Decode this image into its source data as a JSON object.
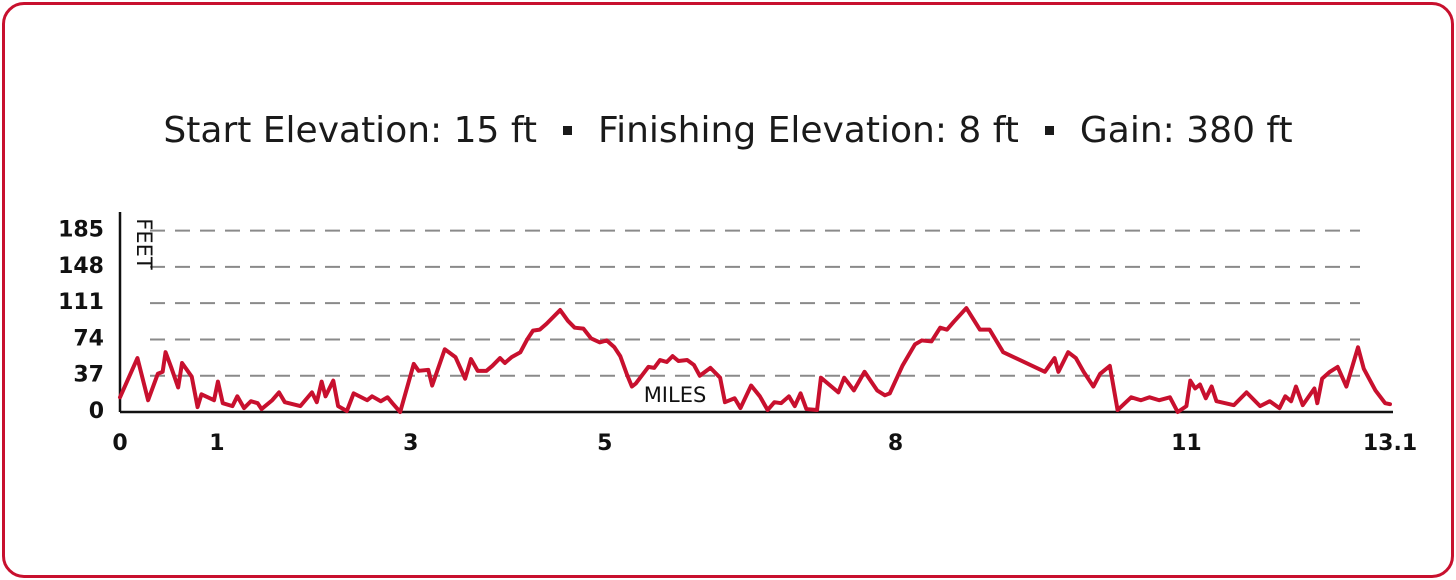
{
  "chart_data": {
    "type": "line",
    "title": [
      "Start Elevation: 15 ft",
      "Finishing Elevation: 8 ft",
      "Gain: 380 ft"
    ],
    "x_label": "MILES",
    "y_label": "FEET",
    "color": "#c8102e",
    "grid": true,
    "xlim": [
      0,
      13.1
    ],
    "xticks": [
      0,
      1,
      3,
      5,
      8,
      11,
      13.1
    ],
    "ylim": [
      0,
      204
    ],
    "yticks": [
      0,
      37,
      74,
      111,
      148,
      185
    ],
    "x": [
      0,
      0.18,
      0.29,
      0.39,
      0.44,
      0.47,
      0.53,
      0.6,
      0.64,
      0.74,
      0.8,
      0.84,
      0.97,
      1.01,
      1.06,
      1.16,
      1.21,
      1.28,
      1.35,
      1.42,
      1.46,
      1.57,
      1.64,
      1.7,
      1.86,
      1.98,
      2.03,
      2.08,
      2.12,
      2.2,
      2.25,
      2.34,
      2.41,
      2.55,
      2.6,
      2.69,
      2.76,
      2.81,
      2.89,
      3.03,
      3.08,
      3.18,
      3.22,
      3.35,
      3.46,
      3.56,
      3.62,
      3.69,
      3.78,
      3.84,
      3.92,
      3.97,
      4.04,
      4.13,
      4.2,
      4.26,
      4.33,
      4.4,
      4.54,
      4.62,
      4.69,
      4.78,
      4.86,
      4.95,
      5.02,
      5.1,
      5.16,
      5.23,
      5.28,
      5.32,
      5.45,
      5.51,
      5.57,
      5.64,
      5.7,
      5.76,
      5.85,
      5.92,
      5.98,
      6.09,
      6.19,
      6.24,
      6.34,
      6.4,
      6.51,
      6.6,
      6.68,
      6.75,
      6.82,
      6.9,
      6.96,
      7.02,
      7.08,
      7.19,
      7.23,
      7.41,
      7.47,
      7.57,
      7.68,
      7.81,
      7.89,
      7.94,
      8.07,
      8.2,
      8.27,
      8.37,
      8.46,
      8.53,
      8.6,
      8.73,
      8.87,
      8.97,
      9.11,
      9.54,
      9.64,
      9.68,
      9.78,
      9.86,
      9.94,
      10.04,
      10.11,
      10.21,
      10.29,
      10.43,
      10.53,
      10.62,
      10.72,
      10.83,
      10.91,
      11.0,
      11.04,
      11.09,
      11.14,
      11.2,
      11.26,
      11.31,
      11.49,
      11.62,
      11.76,
      11.86,
      11.96,
      12.02,
      12.08,
      12.13,
      12.2,
      12.32,
      12.35,
      12.4,
      12.48,
      12.56,
      12.65,
      12.77,
      12.83,
      12.95,
      13.05,
      13.1
    ],
    "values": [
      15,
      55,
      12,
      39,
      41,
      61,
      45,
      25,
      50,
      36,
      5,
      18,
      12,
      31,
      9,
      6,
      16,
      4,
      11,
      9,
      3,
      12,
      20,
      10,
      6,
      20,
      10,
      31,
      16,
      32,
      6,
      1,
      19,
      12,
      16,
      11,
      15,
      9,
      0,
      49,
      42,
      43,
      27,
      64,
      56,
      34,
      54,
      42,
      42,
      47,
      55,
      50,
      56,
      61,
      74,
      83,
      84,
      90,
      104,
      93,
      86,
      85,
      75,
      71,
      73,
      66,
      57,
      38,
      26,
      29,
      46,
      45,
      53,
      51,
      57,
      52,
      53,
      48,
      37,
      45,
      35,
      10,
      14,
      4,
      27,
      16,
      2,
      10,
      9,
      16,
      6,
      19,
      3,
      2,
      35,
      20,
      35,
      22,
      41,
      22,
      17,
      19,
      47,
      69,
      73,
      72,
      86,
      84,
      92,
      106,
      84,
      84,
      61,
      41,
      55,
      41,
      61,
      55,
      41,
      26,
      39,
      47,
      2,
      15,
      12,
      15,
      12,
      15,
      0,
      6,
      32,
      24,
      28,
      14,
      26,
      11,
      7,
      20,
      6,
      11,
      4,
      16,
      11,
      26,
      7,
      24,
      9,
      34,
      41,
      46,
      26,
      66,
      44,
      22,
      9,
      8
    ]
  }
}
